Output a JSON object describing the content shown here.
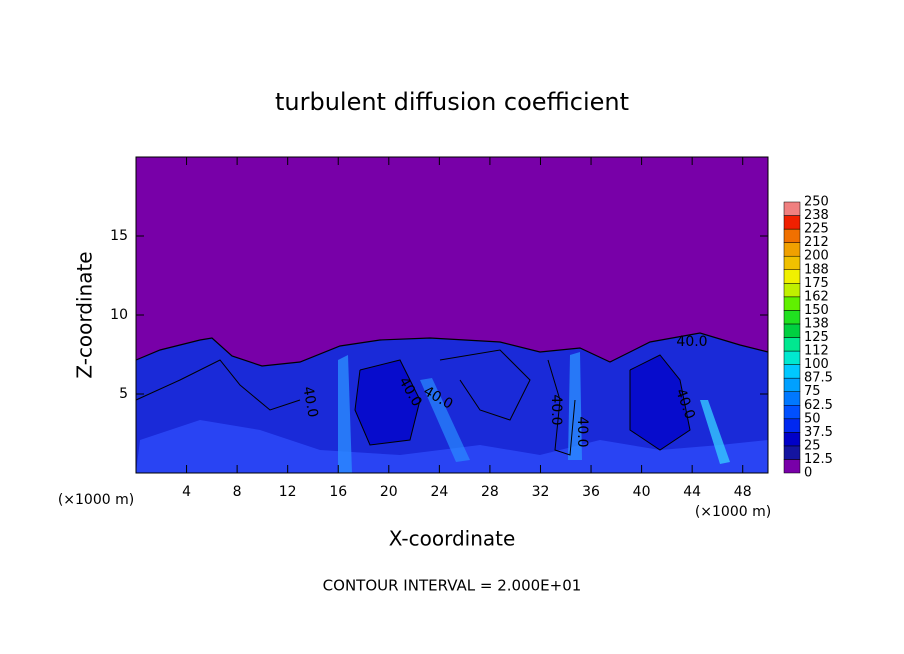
{
  "chart_data": {
    "type": "contour",
    "title": "turbulent diffusion coefficient",
    "x_label": "X-coordinate",
    "y_label": "Z-coordinate",
    "x_unit": "(×1000 m)",
    "y_unit": "(×1000 m)",
    "footnote": "CONTOUR INTERVAL = 2.000E+01",
    "xlim": [
      0,
      50
    ],
    "ylim": [
      0,
      20
    ],
    "xticks": [
      4,
      8,
      12,
      16,
      20,
      24,
      28,
      32,
      36,
      40,
      44,
      48
    ],
    "yticks": [
      5,
      10,
      15
    ],
    "contour_labels": [
      "40.0",
      "40.0",
      "40.0",
      "40.0",
      "40.0",
      "40.0",
      "40.0"
    ],
    "colorbar": {
      "levels": [
        0,
        12.5,
        25,
        37.5,
        50,
        62.5,
        75,
        87.5,
        100,
        112,
        125,
        138,
        150,
        162,
        175,
        188,
        200,
        212,
        225,
        238,
        250
      ],
      "colors": [
        "#7800a8",
        "#1414a0",
        "#0000c8",
        "#0028f0",
        "#0050ff",
        "#0078ff",
        "#00a0ff",
        "#00c8ff",
        "#00e8d0",
        "#00e890",
        "#00d040",
        "#20e020",
        "#60f000",
        "#c0f000",
        "#f0f000",
        "#f0c000",
        "#f0a000",
        "#f07000",
        "#f02000",
        "#f08080"
      ]
    }
  }
}
